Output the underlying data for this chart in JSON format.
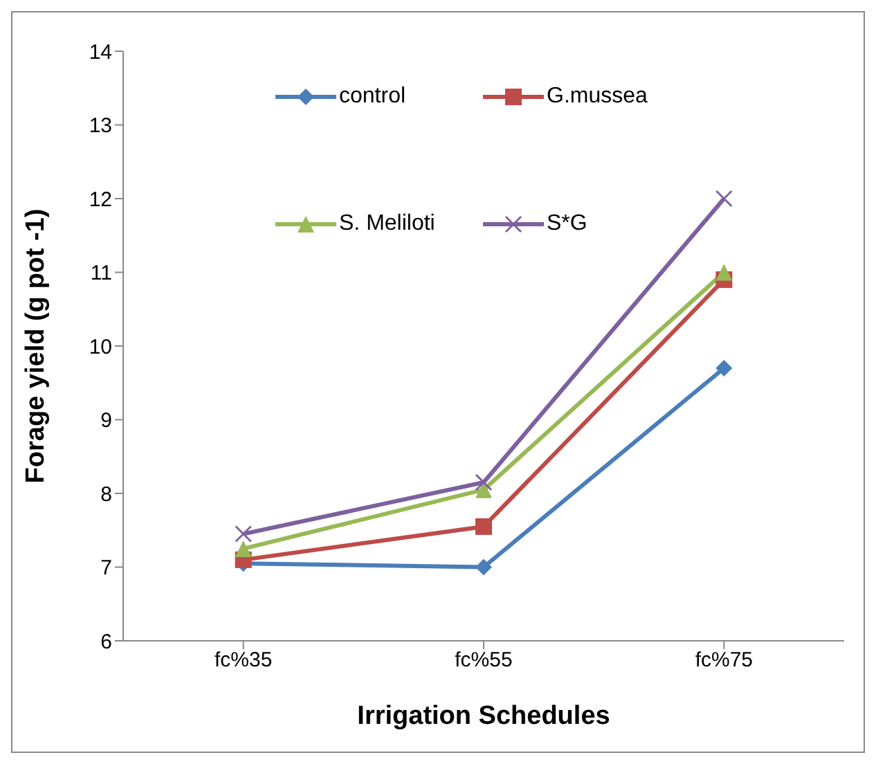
{
  "chart_data": {
    "type": "line",
    "xlabel": "Irrigation Schedules",
    "ylabel": "Forage yield (g pot -1)",
    "categories": [
      "fc%35",
      "fc%55",
      "fc%75"
    ],
    "series": [
      {
        "name": "control",
        "color": "#4a7ebb",
        "marker": "diamond",
        "values": [
          7.05,
          7.0,
          9.7
        ]
      },
      {
        "name": "G.mussea",
        "color": "#be4b48",
        "marker": "square",
        "values": [
          7.1,
          7.55,
          10.9
        ]
      },
      {
        "name": "S. Meliloti",
        "color": "#98b954",
        "marker": "triangle",
        "values": [
          7.25,
          8.05,
          11.0
        ]
      },
      {
        "name": "S*G",
        "color": "#7d60a0",
        "marker": "cross",
        "values": [
          7.45,
          8.15,
          12.0
        ]
      }
    ],
    "ylim": [
      6,
      14
    ],
    "yticks": [
      6,
      7,
      8,
      9,
      10,
      11,
      12,
      13,
      14
    ],
    "grid": false,
    "legend": "top"
  }
}
